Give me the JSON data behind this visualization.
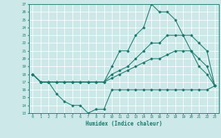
{
  "title": "",
  "xlabel": "Humidex (Indice chaleur)",
  "x_min": 0,
  "x_max": 23,
  "y_min": 13,
  "y_max": 27,
  "line_color": "#1a7a6e",
  "bg_color": "#cce8e8",
  "grid_color": "#ffffff",
  "series": {
    "max": {
      "x": [
        0,
        1,
        2,
        3,
        4,
        5,
        6,
        7,
        8,
        9,
        10,
        11,
        12,
        13,
        14,
        15,
        16,
        17,
        18,
        19,
        20,
        21,
        22,
        23
      ],
      "y": [
        18,
        17,
        17,
        17,
        17,
        17,
        17,
        17,
        17,
        17,
        19,
        21,
        21,
        23,
        24,
        27,
        26,
        26,
        25,
        23,
        21,
        19,
        18,
        16.5
      ]
    },
    "upper_mid": {
      "x": [
        0,
        1,
        2,
        3,
        4,
        5,
        6,
        7,
        8,
        9,
        10,
        11,
        12,
        13,
        14,
        15,
        16,
        17,
        18,
        19,
        20,
        21,
        22,
        23
      ],
      "y": [
        18,
        17,
        17,
        17,
        17,
        17,
        17,
        17,
        17,
        17,
        18,
        18.5,
        19,
        20,
        21,
        22,
        22,
        23,
        23,
        23,
        23,
        22,
        21,
        16.5
      ]
    },
    "mean": {
      "x": [
        0,
        1,
        2,
        3,
        4,
        5,
        6,
        7,
        8,
        9,
        10,
        11,
        12,
        13,
        14,
        15,
        16,
        17,
        18,
        19,
        20,
        21,
        22,
        23
      ],
      "y": [
        18,
        17,
        17,
        17,
        17,
        17,
        17,
        17,
        17,
        17,
        17.5,
        18,
        18.5,
        19,
        19.5,
        20,
        20,
        20.5,
        21,
        21,
        21,
        20,
        19,
        16.5
      ]
    },
    "min": {
      "x": [
        0,
        1,
        2,
        3,
        4,
        5,
        6,
        7,
        8,
        9,
        10,
        11,
        12,
        13,
        14,
        15,
        16,
        17,
        18,
        19,
        20,
        21,
        22,
        23
      ],
      "y": [
        18,
        17,
        17,
        15.5,
        14.5,
        14,
        14,
        13,
        13.5,
        13.5,
        16,
        16,
        16,
        16,
        16,
        16,
        16,
        16,
        16,
        16,
        16,
        16,
        16,
        16.5
      ]
    }
  }
}
